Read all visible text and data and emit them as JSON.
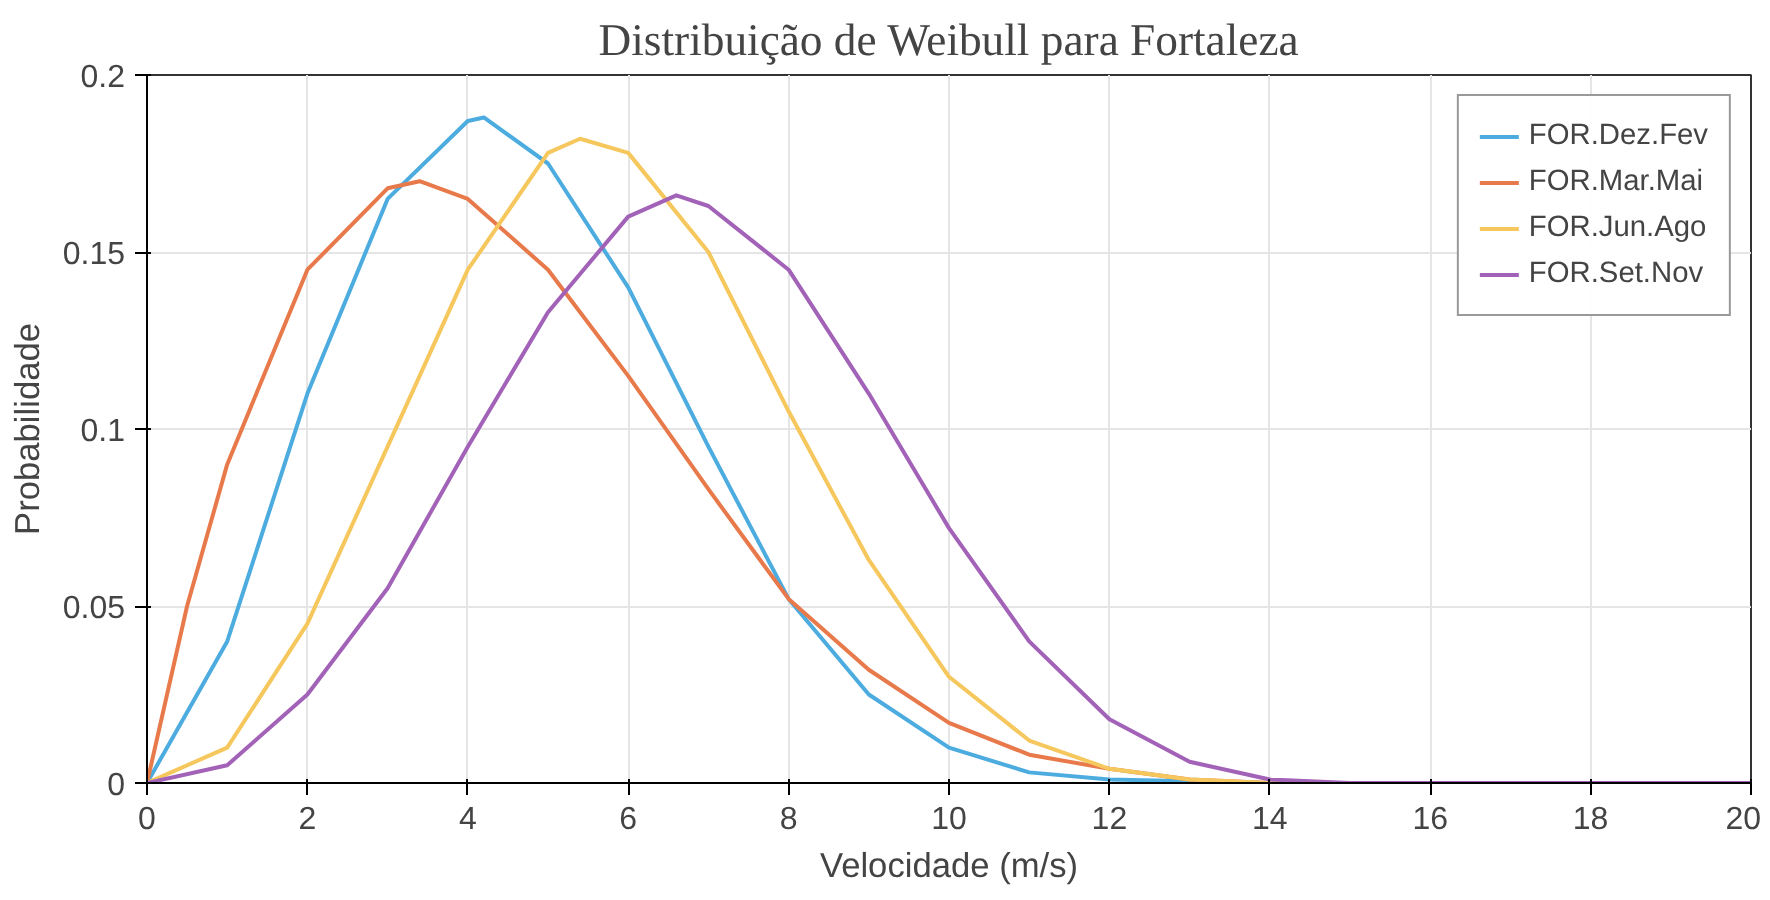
{
  "chart_data": {
    "type": "line",
    "title": "Distribuição de Weibull para Fortaleza",
    "xlabel": "Velocidade (m/s)",
    "ylabel": "Probabilidade",
    "xlim": [
      0,
      20
    ],
    "ylim": [
      0,
      0.2
    ],
    "xticks": [
      0,
      2,
      4,
      6,
      8,
      10,
      12,
      14,
      16,
      18,
      20
    ],
    "yticks": [
      0,
      0.05,
      0.1,
      0.15,
      0.2
    ],
    "grid": true,
    "legend": "top right",
    "series": [
      {
        "name": "FOR.Dez.Fev",
        "color": "#4dacdf",
        "x": [
          0,
          1,
          2,
          3,
          4,
          4.2,
          5,
          6,
          7,
          8,
          9,
          10,
          11,
          12,
          14,
          20
        ],
        "values": [
          0,
          0.04,
          0.11,
          0.165,
          0.187,
          0.188,
          0.175,
          0.14,
          0.095,
          0.052,
          0.025,
          0.01,
          0.003,
          0.001,
          0,
          0
        ]
      },
      {
        "name": "FOR.Mar.Mai",
        "color": "#e8794a",
        "x": [
          0,
          0.5,
          1,
          2,
          3,
          3.4,
          4,
          5,
          6,
          7,
          8,
          9,
          10,
          11,
          12,
          13,
          14,
          20
        ],
        "values": [
          0,
          0.05,
          0.09,
          0.145,
          0.168,
          0.17,
          0.165,
          0.145,
          0.115,
          0.083,
          0.052,
          0.032,
          0.017,
          0.008,
          0.004,
          0.001,
          0,
          0
        ]
      },
      {
        "name": "FOR.Jun.Ago",
        "color": "#f5c75c",
        "x": [
          0,
          1,
          2,
          3,
          4,
          5,
          5.4,
          6,
          7,
          8,
          9,
          10,
          11,
          12,
          13,
          14,
          20
        ],
        "values": [
          0,
          0.01,
          0.045,
          0.095,
          0.145,
          0.178,
          0.182,
          0.178,
          0.15,
          0.105,
          0.063,
          0.03,
          0.012,
          0.004,
          0.001,
          0,
          0
        ]
      },
      {
        "name": "FOR.Set.Nov",
        "color": "#a262b8",
        "x": [
          0,
          1,
          2,
          3,
          4,
          5,
          6,
          6.6,
          7,
          8,
          9,
          10,
          11,
          12,
          13,
          14,
          15,
          20
        ],
        "values": [
          0,
          0.005,
          0.025,
          0.055,
          0.095,
          0.133,
          0.16,
          0.166,
          0.163,
          0.145,
          0.11,
          0.072,
          0.04,
          0.018,
          0.006,
          0.001,
          0,
          0
        ]
      }
    ]
  }
}
